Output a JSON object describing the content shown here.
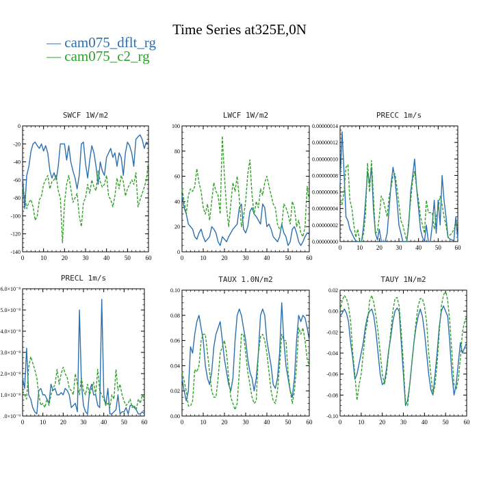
{
  "title": "Time Series at325E,0N",
  "legend": [
    {
      "label": "— cam075_dflt_rg",
      "color": "#2a6fb0"
    },
    {
      "label": "— cam075_c2_rg",
      "color": "#2ca02c"
    }
  ],
  "colors": {
    "series1": "#2a6fb0",
    "series2": "#33a02c"
  },
  "chart_data": [
    {
      "type": "line",
      "title": "SWCF   1W/m2",
      "xlim": [
        0,
        60
      ],
      "ylim": [
        -140,
        0
      ],
      "xticks": [
        "0",
        "10",
        "20",
        "30",
        "40",
        "50",
        "60"
      ],
      "yticks": [
        "-140",
        "-120",
        "-100",
        "-80",
        "-60",
        "-40",
        "-20",
        "0"
      ],
      "series": [
        {
          "name": "cam075_dflt_rg",
          "values": [
            -55,
            -92,
            -55,
            -45,
            -28,
            -20,
            -18,
            -22,
            -25,
            -20,
            -28,
            -22,
            -30,
            -50,
            -58,
            -52,
            -60,
            -45,
            -20,
            -20,
            -20,
            -38,
            -22,
            -40,
            -50,
            -58,
            -70,
            -55,
            -20,
            -18,
            -42,
            -58,
            -38,
            -22,
            -30,
            -45,
            -65,
            -40,
            -50,
            -55,
            -35,
            -30,
            -25,
            -35,
            -30,
            -45,
            -30,
            -35,
            -55,
            -30,
            -18,
            -22,
            -30,
            -45,
            -15,
            -12,
            -10,
            -15,
            -25,
            -18,
            -20
          ]
        },
        {
          "name": "cam075_c2_rg",
          "values": [
            -68,
            -78,
            -92,
            -85,
            -82,
            -90,
            -105,
            -100,
            -82,
            -78,
            -65,
            -60,
            -55,
            -70,
            -62,
            -60,
            -55,
            -72,
            -80,
            -130,
            -85,
            -65,
            -55,
            -70,
            -85,
            -80,
            -75,
            -100,
            -112,
            -85,
            -80,
            -65,
            -75,
            -60,
            -68,
            -72,
            -50,
            -62,
            -68,
            -65,
            -55,
            -78,
            -82,
            -90,
            -78,
            -58,
            -70,
            -55,
            -62,
            -78,
            -70,
            -65,
            -60,
            -65,
            -52,
            -90,
            -82,
            -75,
            -68,
            -60,
            -40
          ]
        }
      ]
    },
    {
      "type": "line",
      "title": "LWCF   1W/m2",
      "xlim": [
        0,
        60
      ],
      "ylim": [
        0,
        100
      ],
      "xticks": [
        "0",
        "10",
        "20",
        "30",
        "40",
        "50",
        "60"
      ],
      "yticks": [
        "0",
        "20",
        "40",
        "60",
        "80",
        "100"
      ],
      "series": [
        {
          "name": "cam075_dflt_rg",
          "values": [
            45,
            35,
            30,
            22,
            20,
            18,
            12,
            10,
            15,
            18,
            12,
            8,
            10,
            12,
            20,
            18,
            15,
            8,
            5,
            12,
            10,
            8,
            12,
            15,
            18,
            20,
            22,
            35,
            38,
            18,
            15,
            20,
            32,
            35,
            30,
            28,
            25,
            22,
            38,
            35,
            20,
            22,
            18,
            12,
            10,
            8,
            12,
            22,
            15,
            12,
            5,
            8,
            18,
            20,
            15,
            8,
            5,
            8,
            12,
            15,
            14
          ]
        },
        {
          "name": "cam075_c2_rg",
          "values": [
            50,
            40,
            30,
            45,
            50,
            48,
            52,
            66,
            55,
            48,
            35,
            30,
            38,
            25,
            40,
            55,
            48,
            45,
            30,
            92,
            60,
            35,
            20,
            38,
            55,
            48,
            60,
            42,
            20,
            28,
            40,
            62,
            73,
            45,
            30,
            40,
            35,
            50,
            45,
            55,
            60,
            52,
            45,
            38,
            35,
            22,
            18,
            20,
            38,
            35,
            30,
            22,
            40,
            35,
            20,
            25,
            15,
            12,
            20,
            52,
            40
          ]
        }
      ]
    },
    {
      "type": "line",
      "title": "PRECC   1m/s",
      "xlim": [
        0,
        60
      ],
      "ylim": [
        0,
        1.4e-07
      ],
      "xticks": [
        "0",
        "10",
        "20",
        "30",
        "40",
        "50",
        "60"
      ],
      "yticks": [
        "0.00000000",
        "0.00000002",
        "0.00000004",
        "0.00000006",
        "0.00000008",
        "0.00000010",
        "0.00000012",
        "0.00000014"
      ],
      "series": [
        {
          "name": "cam075_dflt_rg",
          "values": [
            7e-08,
            1.33e-07,
            8.5e-08,
            3e-08,
            2.5e-08,
            1.5e-08,
            1e-08,
            5e-09,
            1e-09,
            0,
            0,
            0,
            2e-08,
            5e-08,
            8.5e-08,
            7e-08,
            9e-08,
            4e-08,
            1e-08,
            2e-09,
            1.5e-08,
            0,
            0,
            0,
            1e-08,
            4e-08,
            7e-08,
            9e-08,
            7.5e-08,
            5e-08,
            2e-08,
            1e-08,
            0,
            0,
            0,
            2e-08,
            6e-08,
            8e-08,
            1e-07,
            6.5e-08,
            4e-08,
            1.5e-08,
            5e-09,
            0,
            2e-08,
            0,
            0,
            2e-08,
            5e-08,
            1e-08,
            5e-08,
            2e-08,
            8e-08,
            5e-08,
            3e-08,
            5e-09,
            3e-09,
            2e-09,
            1e-09,
            3e-08,
            3e-09
          ]
        },
        {
          "name": "cam075_c2_rg",
          "values": [
            5e-08,
            4.5e-08,
            6e-08,
            9e-08,
            9.3e-08,
            5e-08,
            4e-08,
            2e-08,
            5e-09,
            1.5e-08,
            0,
            0,
            1e-08,
            3.5e-08,
            9.5e-08,
            6e-08,
            9.8e-08,
            5.5e-08,
            1e-08,
            1.2e-08,
            3e-08,
            5.5e-08,
            5e-08,
            4e-08,
            3e-08,
            5.5e-08,
            6.5e-08,
            8e-08,
            8.2e-08,
            6.5e-08,
            4.5e-08,
            2.5e-08,
            2e-08,
            1e-08,
            0,
            2.5e-08,
            5e-08,
            7.5e-08,
            8.5e-08,
            6.5e-08,
            5e-08,
            3e-08,
            2e-08,
            1e-08,
            5e-08,
            3.5e-08,
            3.5e-08,
            3.5e-08,
            1.5e-08,
            3e-08,
            4e-08,
            5.5e-08,
            4.5e-08,
            3e-08,
            2e-08,
            5e-09,
            8e-09,
            1e-08,
            1.5e-08,
            2e-08,
            2.5e-08
          ]
        }
      ]
    },
    {
      "type": "line",
      "title": "PRECL   1m/s",
      "xlim": [
        0,
        60
      ],
      "ylim": [
        0,
        6e-08
      ],
      "xticks": [
        "0",
        "10",
        "20",
        "30",
        "40",
        "50",
        "60"
      ],
      "yticks": [
        ".0×10⁻⁹",
        "1.0×10⁻⁸",
        "2.0×10⁻⁸",
        "3.0×10⁻⁸",
        "4.0×10⁻⁸",
        "5.0×10⁻⁸",
        "6.0×10⁻⁸"
      ],
      "series": [
        {
          "name": "cam075_dflt_rg",
          "values": [
            1.8e-08,
            1.3e-08,
            3.2e-08,
            1e-08,
            8e-09,
            4e-09,
            2e-09,
            1e-09,
            1.2e-08,
            1.3e-08,
            1e-08,
            1e-08,
            8e-09,
            6e-09,
            1.5e-08,
            1.2e-08,
            1.3e-08,
            1e-08,
            1e-08,
            1.1e-08,
            1e-08,
            1.3e-08,
            1.2e-08,
            1e-08,
            4e-09,
            5e-09,
            6e-09,
            2e-09,
            5e-08,
            1.5e-08,
            5e-09,
            2e-09,
            1e-09,
            1.2e-08,
            1.5e-08,
            1e-08,
            1e-08,
            5e-09,
            4e-09,
            5.5e-08,
            1e-08,
            5e-09,
            1.3e-08,
            1e-09,
            1e-09,
            2e-09,
            3e-09,
            1e-08,
            1e-09,
            2e-09,
            2e-09,
            4e-09,
            1e-09,
            5e-09,
            5e-09,
            4e-09,
            3e-09,
            1e-09,
            1e-09,
            2e-09,
            1e-09
          ]
        },
        {
          "name": "cam075_c2_rg",
          "values": [
            1.2e-08,
            1e-08,
            8e-09,
            2.3e-08,
            2.8e-08,
            2.5e-08,
            2.2e-08,
            1.8e-08,
            1e-08,
            5e-09,
            6e-09,
            4e-09,
            8e-09,
            5e-09,
            1e-08,
            1.3e-08,
            1.5e-08,
            2.2e-08,
            1.5e-08,
            2e-08,
            2.3e-08,
            2e-08,
            1.8e-08,
            1.3e-08,
            1.2e-08,
            1e-08,
            2e-08,
            1.5e-08,
            1e-08,
            1.8e-08,
            1.2e-08,
            1e-08,
            1.5e-08,
            1e-08,
            1.3e-08,
            1.6e-08,
            1e-08,
            2.2e-08,
            1.2e-08,
            1e-08,
            8e-09,
            5e-09,
            6e-09,
            4e-09,
            1e-08,
            8e-09,
            2.2e-08,
            1.2e-08,
            1.5e-08,
            1e-08,
            7e-09,
            5e-09,
            6e-09,
            8e-09,
            4e-09,
            5e-09,
            3e-09,
            8e-09,
            6e-09,
            1e-08,
            8e-09
          ]
        }
      ]
    },
    {
      "type": "line",
      "title": "TAUX   1.0N/m2",
      "xlim": [
        0,
        60
      ],
      "ylim": [
        0,
        0.1
      ],
      "xticks": [
        "0",
        "10",
        "20",
        "30",
        "40",
        "50",
        "60"
      ],
      "yticks": [
        "0.00",
        "0.02",
        "0.04",
        "0.06",
        "0.08",
        "0.10"
      ],
      "series": [
        {
          "name": "cam075_dflt_rg",
          "values": [
            0.03,
            0.02,
            0.012,
            0.02,
            0.055,
            0.05,
            0.065,
            0.075,
            0.08,
            0.07,
            0.06,
            0.04,
            0.03,
            0.025,
            0.035,
            0.055,
            0.065,
            0.07,
            0.075,
            0.06,
            0.045,
            0.035,
            0.025,
            0.02,
            0.03,
            0.06,
            0.08,
            0.085,
            0.08,
            0.07,
            0.06,
            0.045,
            0.035,
            0.03,
            0.02,
            0.03,
            0.05,
            0.08,
            0.085,
            0.08,
            0.06,
            0.05,
            0.04,
            0.025,
            0.022,
            0.03,
            0.05,
            0.09,
            0.06,
            0.04,
            0.03,
            0.02,
            0.015,
            0.03,
            0.06,
            0.08,
            0.075,
            0.08,
            0.078,
            0.07,
            0.06
          ]
        },
        {
          "name": "cam075_c2_rg",
          "values": [
            0.035,
            0.028,
            0.02,
            0.008,
            0.008,
            0.012,
            0.037,
            0.035,
            0.04,
            0.06,
            0.065,
            0.065,
            0.05,
            0.035,
            0.02,
            0.015,
            0.015,
            0.03,
            0.05,
            0.055,
            0.06,
            0.05,
            0.03,
            0.015,
            0.01,
            0.005,
            0.01,
            0.035,
            0.065,
            0.065,
            0.05,
            0.035,
            0.025,
            0.015,
            0.01,
            0.012,
            0.05,
            0.063,
            0.065,
            0.06,
            0.05,
            0.035,
            0.02,
            0.012,
            0.01,
            0.02,
            0.04,
            0.065,
            0.06,
            0.06,
            0.035,
            0.02,
            0.01,
            0.02,
            0.04,
            0.07,
            0.065,
            0.07,
            0.06,
            0.045,
            0.04
          ]
        }
      ]
    },
    {
      "type": "line",
      "title": "TAUY   1N/m2",
      "xlim": [
        0,
        60
      ],
      "ylim": [
        -0.1,
        0.02
      ],
      "xticks": [
        "0",
        "10",
        "20",
        "30",
        "40",
        "50",
        "60"
      ],
      "yticks": [
        "-0.10",
        "-0.08",
        "-0.06",
        "-0.04",
        "-0.02",
        "0.00",
        "0.02"
      ],
      "series": [
        {
          "name": "cam075_dflt_rg",
          "values": [
            -0.005,
            -0.002,
            0.002,
            -0.002,
            -0.01,
            -0.03,
            -0.045,
            -0.065,
            -0.06,
            -0.05,
            -0.04,
            -0.03,
            -0.015,
            -0.005,
            0.0,
            0.002,
            -0.005,
            -0.02,
            -0.04,
            -0.06,
            -0.07,
            -0.068,
            -0.055,
            -0.038,
            -0.025,
            -0.01,
            0.0,
            0.003,
            0.0,
            -0.03,
            -0.06,
            -0.09,
            -0.085,
            -0.07,
            -0.05,
            -0.03,
            -0.015,
            -0.005,
            0.002,
            -0.005,
            -0.02,
            -0.04,
            -0.06,
            -0.075,
            -0.08,
            -0.06,
            -0.04,
            -0.015,
            0.0,
            0.005,
            0.0,
            -0.005,
            -0.03,
            -0.06,
            -0.08,
            -0.07,
            -0.05,
            -0.03,
            -0.04,
            -0.035,
            -0.03
          ]
        },
        {
          "name": "cam075_c2_rg",
          "values": [
            0.0,
            0.01,
            0.015,
            0.012,
            0.005,
            -0.01,
            -0.04,
            -0.06,
            -0.085,
            -0.07,
            -0.06,
            -0.04,
            -0.02,
            -0.01,
            0.01,
            0.015,
            0.008,
            -0.005,
            -0.02,
            -0.04,
            -0.06,
            -0.07,
            -0.06,
            -0.04,
            -0.02,
            0.0,
            0.012,
            0.013,
            0.005,
            -0.02,
            -0.05,
            -0.088,
            -0.09,
            -0.07,
            -0.05,
            -0.03,
            -0.01,
            0.005,
            0.012,
            0.012,
            0.005,
            -0.01,
            -0.04,
            -0.06,
            -0.08,
            -0.07,
            -0.05,
            -0.02,
            0.005,
            0.015,
            0.02,
            0.01,
            -0.01,
            -0.04,
            -0.07,
            -0.075,
            -0.065,
            -0.045,
            -0.02,
            -0.01,
            -0.005
          ]
        }
      ]
    }
  ]
}
